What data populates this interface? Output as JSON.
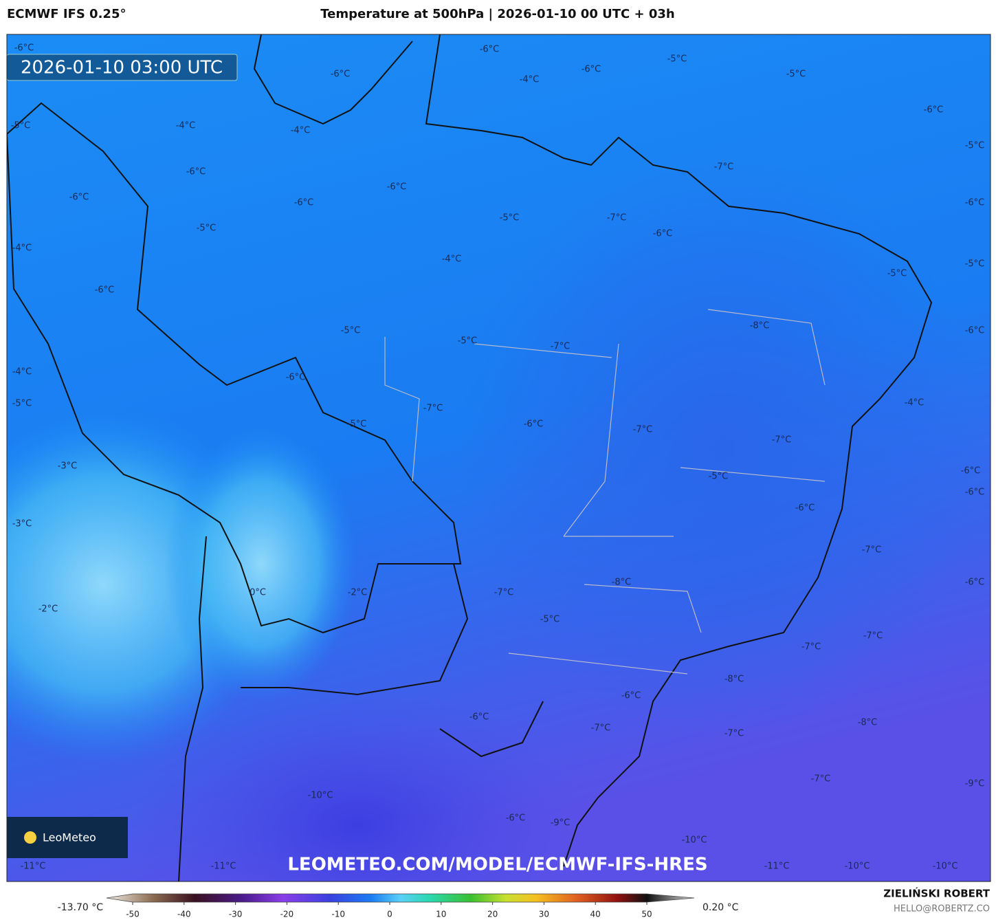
{
  "header": {
    "model": "ECMWF IFS 0.25°",
    "title": "Temperature at 500hPa | 2026-01-10 00 UTC + 03h"
  },
  "map": {
    "timestamp": "2026-01-10 03:00 UTC",
    "watermark": "LEOMETEO.COM/MODEL/ECMWF-IFS-HRES",
    "logo": "LeoMeteo",
    "labels": [
      "-6°C",
      "-5°C",
      "-4°C",
      "-6°C",
      "-4°C",
      "-6°C",
      "-5°C",
      "-6°C",
      "-6°C",
      "-4°C",
      "-6°C",
      "-6°C",
      "-6°C",
      "-4°C",
      "-6°C",
      "-5°C",
      "-5°C",
      "-6°C",
      "-5°C",
      "-7°C",
      "-6°C",
      "-5°C",
      "-7°C",
      "-6°C",
      "-4°C",
      "-5°C",
      "-5°C",
      "-8°C",
      "-6°C",
      "-5°C",
      "-5°C",
      "-7°C",
      "-6°C",
      "-4°C",
      "-5°C",
      "-4°C",
      "-7°C",
      "-5°C",
      "-6°C",
      "-7°C",
      "-7°C",
      "-3°C",
      "-6°C",
      "-5°C",
      "-6°C",
      "-6°C",
      "-3°C",
      "-7°C",
      "-8°C",
      "-6°C",
      "0°C",
      "-2°C",
      "-7°C",
      "-2°C",
      "-5°C",
      "-7°C",
      "-7°C",
      "-8°C",
      "-6°C",
      "-6°C",
      "-8°C",
      "-7°C",
      "-7°C",
      "-7°C",
      "-9°C",
      "-10°C",
      "-6°C",
      "-9°C",
      "-10°C",
      "-11°C",
      "-11°C",
      "-11°C",
      "-10°C",
      "-10°C"
    ]
  },
  "colorbar": {
    "min_label": "-13.70 °C",
    "max_label": "0.20 °C",
    "ticks": [
      -50,
      -40,
      -30,
      -20,
      -10,
      0,
      10,
      20,
      30,
      40,
      50
    ]
  },
  "footer": {
    "author": "ZIELIŃSKI ROBERT",
    "email": "HELLO@ROBERTZ.CO"
  }
}
